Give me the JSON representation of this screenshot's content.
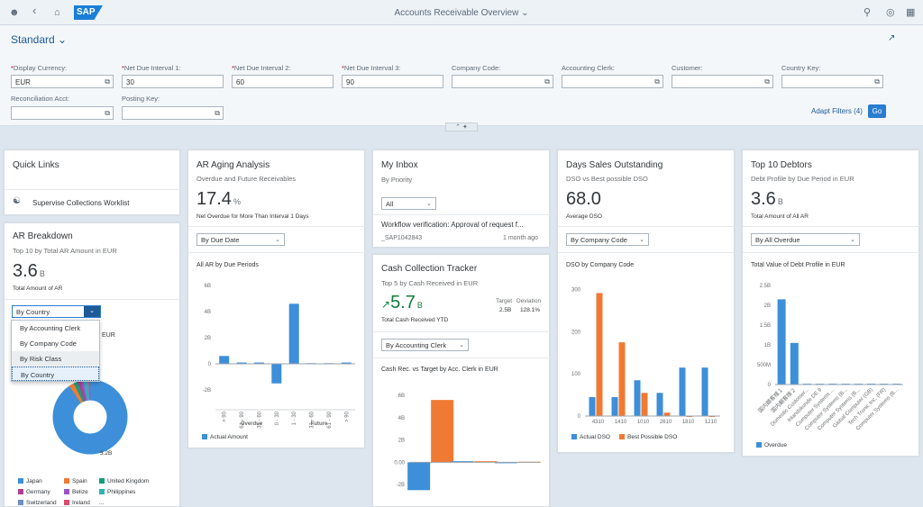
{
  "shell": {
    "title": "Accounts Receivable Overview",
    "logo": "SAP"
  },
  "filterbar": {
    "variant": "Standard",
    "fields": [
      {
        "label": "Display Currency:",
        "value": "EUR",
        "required": true
      },
      {
        "label": "Net Due Interval 1:",
        "value": "30",
        "required": true
      },
      {
        "label": "Net Due Interval 2:",
        "value": "60",
        "required": true
      },
      {
        "label": "Net Due Interval 3:",
        "value": "90",
        "required": true
      },
      {
        "label": "Company Code:",
        "value": "",
        "required": false
      },
      {
        "label": "Accounting Clerk:",
        "value": "",
        "required": false
      },
      {
        "label": "Customer:",
        "value": "",
        "required": false
      },
      {
        "label": "Country Key:",
        "value": "",
        "required": false
      },
      {
        "label": "Reconciliation Acct:",
        "value": "",
        "required": false
      },
      {
        "label": "Posting Key:",
        "value": "",
        "required": false
      }
    ],
    "adapt_label": "Adapt Filters (4)",
    "go_label": "Go"
  },
  "quick_links": {
    "title": "Quick Links",
    "link": "Supervise Collections Worklist"
  },
  "ar_breakdown": {
    "title": "AR Breakdown",
    "subtitle": "Top 10 by Total AR Amount in EUR",
    "kpi": "3.6",
    "unit": "B",
    "kpi_label": "Total Amount of AR",
    "select": "By Country",
    "options": [
      "By Accounting Clerk",
      "By Company Code",
      "By Risk Class",
      "By Country"
    ],
    "chart_partial_label": "EUR",
    "donut_label": "3.2B",
    "legend": [
      {
        "name": "Japan",
        "color": "#3c8fd8"
      },
      {
        "name": "Spain",
        "color": "#f07a33"
      },
      {
        "name": "United Kingdom",
        "color": "#13a07c"
      },
      {
        "name": "Germany",
        "color": "#b03e8c"
      },
      {
        "name": "Belize",
        "color": "#9a53c7"
      },
      {
        "name": "Philippines",
        "color": "#2ab5b5"
      },
      {
        "name": "Switzerland",
        "color": "#6b8fc4"
      },
      {
        "name": "Ireland",
        "color": "#dc4d6b"
      }
    ],
    "legend_more": "..."
  },
  "ar_aging": {
    "title": "AR Aging Analysis",
    "subtitle": "Overdue and Future Receivables",
    "kpi": "17.4",
    "unit": "%",
    "kpi_label": "Net Overdue for More Than Interval 1 Days",
    "select": "By Due Date",
    "chart_title": "All AR by Due Periods",
    "group_labels": [
      "Overdue",
      "Future"
    ],
    "legend": "Actual Amount"
  },
  "inbox": {
    "title": "My Inbox",
    "subtitle": "By Priority",
    "select": "All",
    "item_text": "Workflow verification: Approval of request f...",
    "item_user": "_SAP1042843",
    "item_time": "1 month ago"
  },
  "collection": {
    "title": "Cash Collection Tracker",
    "subtitle": "Top 5 by Cash Received in EUR",
    "arrow": "↗",
    "kpi": "5.7",
    "unit": "B",
    "kpi_label": "Total Cash Received YTD",
    "target_label": "Target",
    "target_value": "2.5B",
    "deviation_label": "Deviation",
    "deviation_value": "128.1%",
    "select": "By Accounting Clerk",
    "chart_title": "Cash Rec. vs Target by Acc. Clerk in EUR"
  },
  "dso": {
    "title": "Days Sales Outstanding",
    "subtitle": "DSO vs Best possible DSO",
    "kpi": "68.0",
    "kpi_label": "Average DSO",
    "select": "By Company Code",
    "chart_title": "DSO by Company Code",
    "legend": [
      "Actual DSO",
      "Best Possible DSO"
    ]
  },
  "debtors": {
    "title": "Top 10 Debtors",
    "subtitle": "Debt Profile by Due Period in EUR",
    "kpi": "3.6",
    "unit": "B",
    "kpi_label": "Total Amount of All AR",
    "select": "By All Overdue",
    "chart_title": "Total Value of Debt Profile in EUR",
    "legend": "Overdue"
  },
  "colors": {
    "blue": "#3c8fd8",
    "orange": "#f07a33",
    "green": "#107e3e",
    "accent": "#2a7dd0"
  },
  "chart_data": [
    {
      "type": "bar",
      "title": "All AR by Due Periods",
      "categories": [
        "> 90",
        "61 - 90",
        "31 - 60",
        "0 - 30",
        "1 - 30",
        "31 - 60",
        "61 - 90",
        "> 90"
      ],
      "series": [
        {
          "name": "Actual Amount",
          "values": [
            0.6,
            0.1,
            0.1,
            -1.5,
            4.6,
            0.05,
            0.05,
            0.1
          ]
        }
      ],
      "yticks": [
        "6B",
        "4B",
        "2B",
        "0",
        "-2B"
      ],
      "ylim": [
        -2,
        6
      ]
    },
    {
      "type": "bar",
      "title": "Cash Rec. vs Target by Acc. Clerk in EUR",
      "categories": [
        "",
        "",
        ""
      ],
      "series": [
        {
          "values": [
            -2.5,
            0.1,
            0.0
          ]
        },
        {
          "values": [
            5.6,
            0.1,
            0.05
          ]
        }
      ],
      "yticks": [
        "6B",
        "4B",
        "2B",
        "0.00",
        "-2B"
      ],
      "ylim": [
        -2.8,
        6.5
      ]
    },
    {
      "type": "bar",
      "title": "DSO by Company Code",
      "categories": [
        "4310",
        "1410",
        "1010",
        "2610",
        "1810",
        "1210"
      ],
      "series": [
        {
          "name": "Actual DSO",
          "values": [
            45,
            45,
            85,
            55,
            115,
            115
          ]
        },
        {
          "name": "Best Possible DSO",
          "values": [
            292,
            175,
            55,
            8,
            0,
            0
          ]
        }
      ],
      "yticks": [
        "300",
        "200",
        "100",
        "0"
      ],
      "ylim": [
        0,
        310
      ]
    },
    {
      "type": "bar",
      "title": "Total Value of Debt Profile in EUR",
      "categories": [
        "国内顧客様１",
        "国内顧客様２",
        "Domestic Customer...",
        "Inlandskunde DE 9",
        "Computer Systems ...",
        "Computer Systems (B...",
        "Computer Systems (B...",
        "Global Computer (GB)",
        "Tech Tronic Inc. (FR)",
        "Computer Systems (B..."
      ],
      "series": [
        {
          "name": "Overdue",
          "values": [
            2.15,
            1.05,
            0.02,
            0.02,
            0.02,
            0.02,
            0.02,
            0.02,
            0.02,
            0.02
          ]
        }
      ],
      "yticks": [
        "2.5B",
        "2B",
        "1.5B",
        "1B",
        "500M",
        "0"
      ],
      "ylim": [
        0,
        2.5
      ]
    },
    {
      "type": "pie",
      "title": "",
      "categories": [
        "Japan",
        "Spain",
        "United Kingdom",
        "Germany",
        "Belize",
        "Philippines",
        "Switzerland",
        "Ireland"
      ],
      "values": [
        3.2,
        0.08,
        0.06,
        0.05,
        0.04,
        0.04,
        0.04,
        0.03
      ]
    }
  ]
}
